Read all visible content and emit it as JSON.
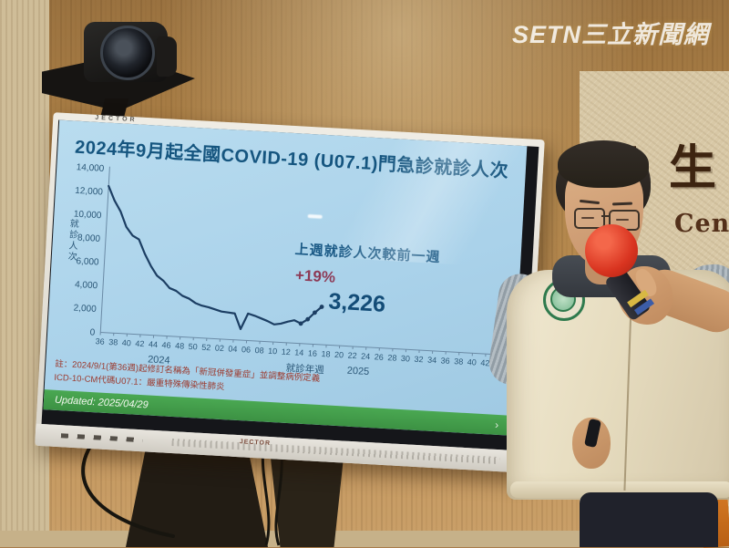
{
  "watermark": {
    "text": "SETN三立新聞網"
  },
  "wall": {
    "calligraphy": "衛生",
    "calligraphy_latin": "Cen"
  },
  "screen": {
    "brand": "JECTOR",
    "speaker_logo": "JECTOR",
    "title": "2024年9月起全國COVID-19 (U07.1)門急診就診人次",
    "annotation": {
      "heading": "上週就診人次較前一週",
      "change": "+19%",
      "value": "3,226"
    },
    "footnote_line1": "註：2024/9/1(第36週)起修訂名稱為「新冠併發重症」並調整病例定義",
    "footnote_line2": "ICD-10-CM代碼U07.1：嚴重特殊傳染性肺炎",
    "updated_label": "Updated: 2025/04/29",
    "updated_chevron": "›"
  },
  "chart_data": {
    "type": "line",
    "title": "2024年9月起全國COVID-19 (U07.1)門急診就診人次",
    "xlabel": "就診年週",
    "ylabel": "就診人次",
    "ylim": [
      0,
      14000
    ],
    "ytick_step": 2000,
    "grid": false,
    "legend": "none",
    "x_tick_labels": [
      "36",
      "38",
      "40",
      "42",
      "44",
      "46",
      "48",
      "50",
      "52",
      "02",
      "04",
      "06",
      "08",
      "10",
      "12",
      "14",
      "16",
      "18",
      "20",
      "22",
      "24",
      "26",
      "28",
      "30",
      "32",
      "34",
      "36",
      "38",
      "40",
      "42",
      "44",
      "46"
    ],
    "x_axis_weeks_total": 62,
    "year_labels": [
      {
        "text": "2024",
        "week_index": 9
      },
      {
        "text": "2025",
        "week_index": 39
      }
    ],
    "series": [
      {
        "name": "COVID-19 (U07.1) 門急診就診人次",
        "week_labels": [
          "2024-36",
          "2024-37",
          "2024-38",
          "2024-39",
          "2024-40",
          "2024-41",
          "2024-42",
          "2024-43",
          "2024-44",
          "2024-45",
          "2024-46",
          "2024-47",
          "2024-48",
          "2024-49",
          "2024-50",
          "2024-51",
          "2024-52",
          "2025-01",
          "2025-02",
          "2025-03",
          "2025-04",
          "2025-05",
          "2025-06",
          "2025-07",
          "2025-08",
          "2025-09",
          "2025-10",
          "2025-11",
          "2025-12",
          "2025-13",
          "2025-14",
          "2025-15",
          "2025-16",
          "2025-17"
        ],
        "values": [
          12500,
          11300,
          10400,
          9100,
          8400,
          8100,
          6900,
          5900,
          5100,
          4700,
          4100,
          3900,
          3500,
          3300,
          2950,
          2750,
          2650,
          2500,
          2350,
          2300,
          2250,
          950,
          2300,
          2150,
          1950,
          1750,
          1500,
          1600,
          1800,
          1950,
          1700,
          2100,
          2700,
          3226
        ]
      }
    ],
    "marked_last_points": 4,
    "last_value_label": "3,226",
    "line_color": "#1c3e63"
  }
}
